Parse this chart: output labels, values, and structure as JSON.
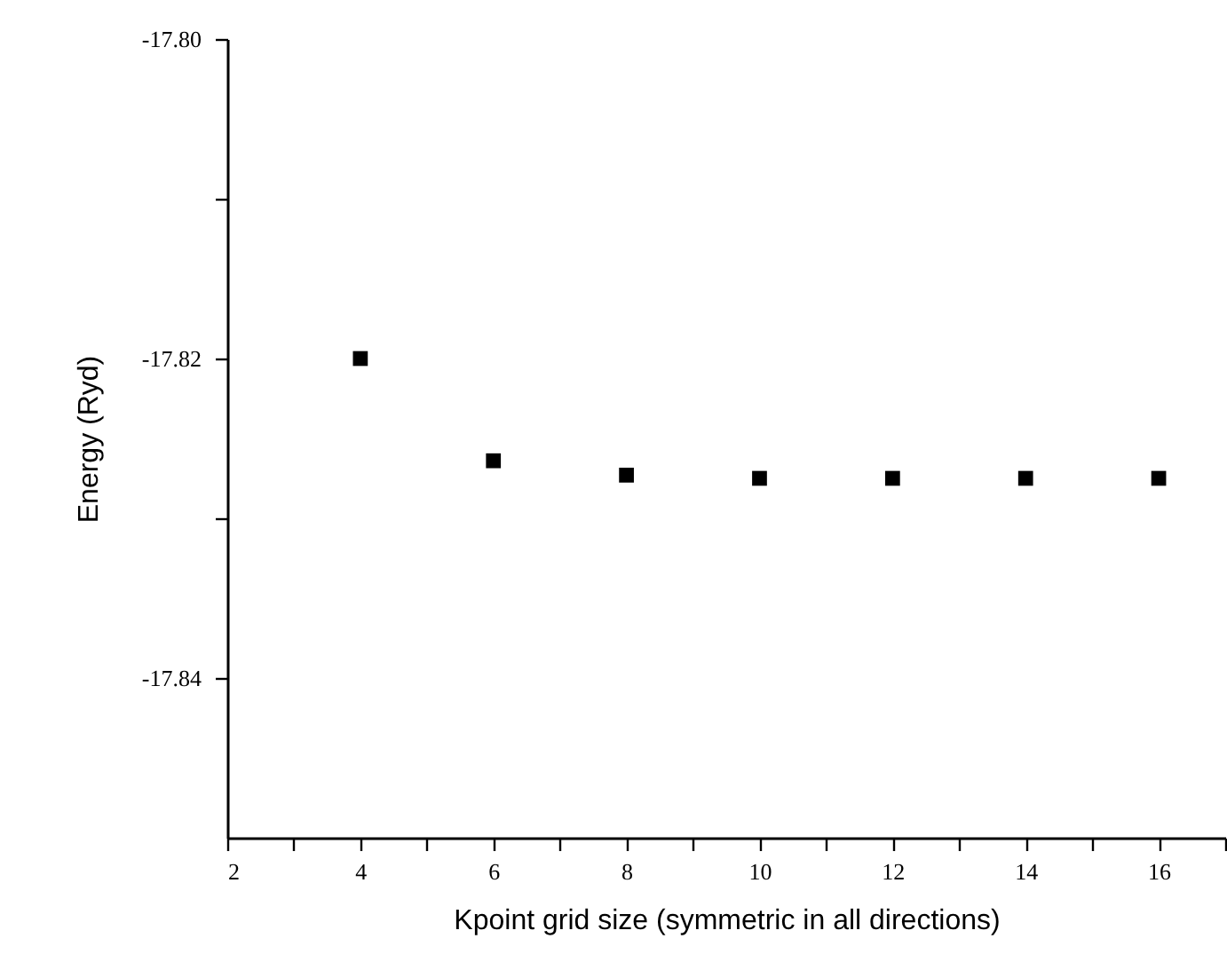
{
  "chart_data": {
    "type": "scatter",
    "xlabel": "Kpoint grid size (symmetric in all directions)",
    "ylabel": "Energy (Ryd)",
    "x": [
      4,
      6,
      8,
      10,
      12,
      14,
      16
    ],
    "series": [
      {
        "color": "#000000",
        "values": [
          -17.82,
          -17.8264,
          -17.8273,
          -17.8275,
          -17.8275,
          -17.8275,
          -17.8275
        ]
      }
    ],
    "xlim": [
      2,
      17
    ],
    "xticks": [
      2,
      {
        "value": 3,
        "label": null
      },
      4,
      {
        "value": 5,
        "label": null
      },
      6,
      {
        "value": 7,
        "label": null
      },
      8,
      {
        "value": 9,
        "label": null
      },
      10,
      {
        "value": 11,
        "label": null
      },
      12,
      {
        "value": 13,
        "label": null
      },
      14,
      {
        "value": 15,
        "label": null
      },
      16,
      {
        "value": 17,
        "label": null
      }
    ],
    "ylim": [
      -17.85,
      -17.8
    ],
    "yticks": [
      {
        "value": -17.8,
        "label": "-17.80"
      },
      {
        "value": -17.81,
        "label": null
      },
      {
        "value": -17.82,
        "label": "-17.82"
      },
      {
        "value": -17.83,
        "label": null
      },
      {
        "value": -17.84,
        "label": "-17.84"
      }
    ],
    "marker": "square",
    "grid": false,
    "legend": false
  }
}
